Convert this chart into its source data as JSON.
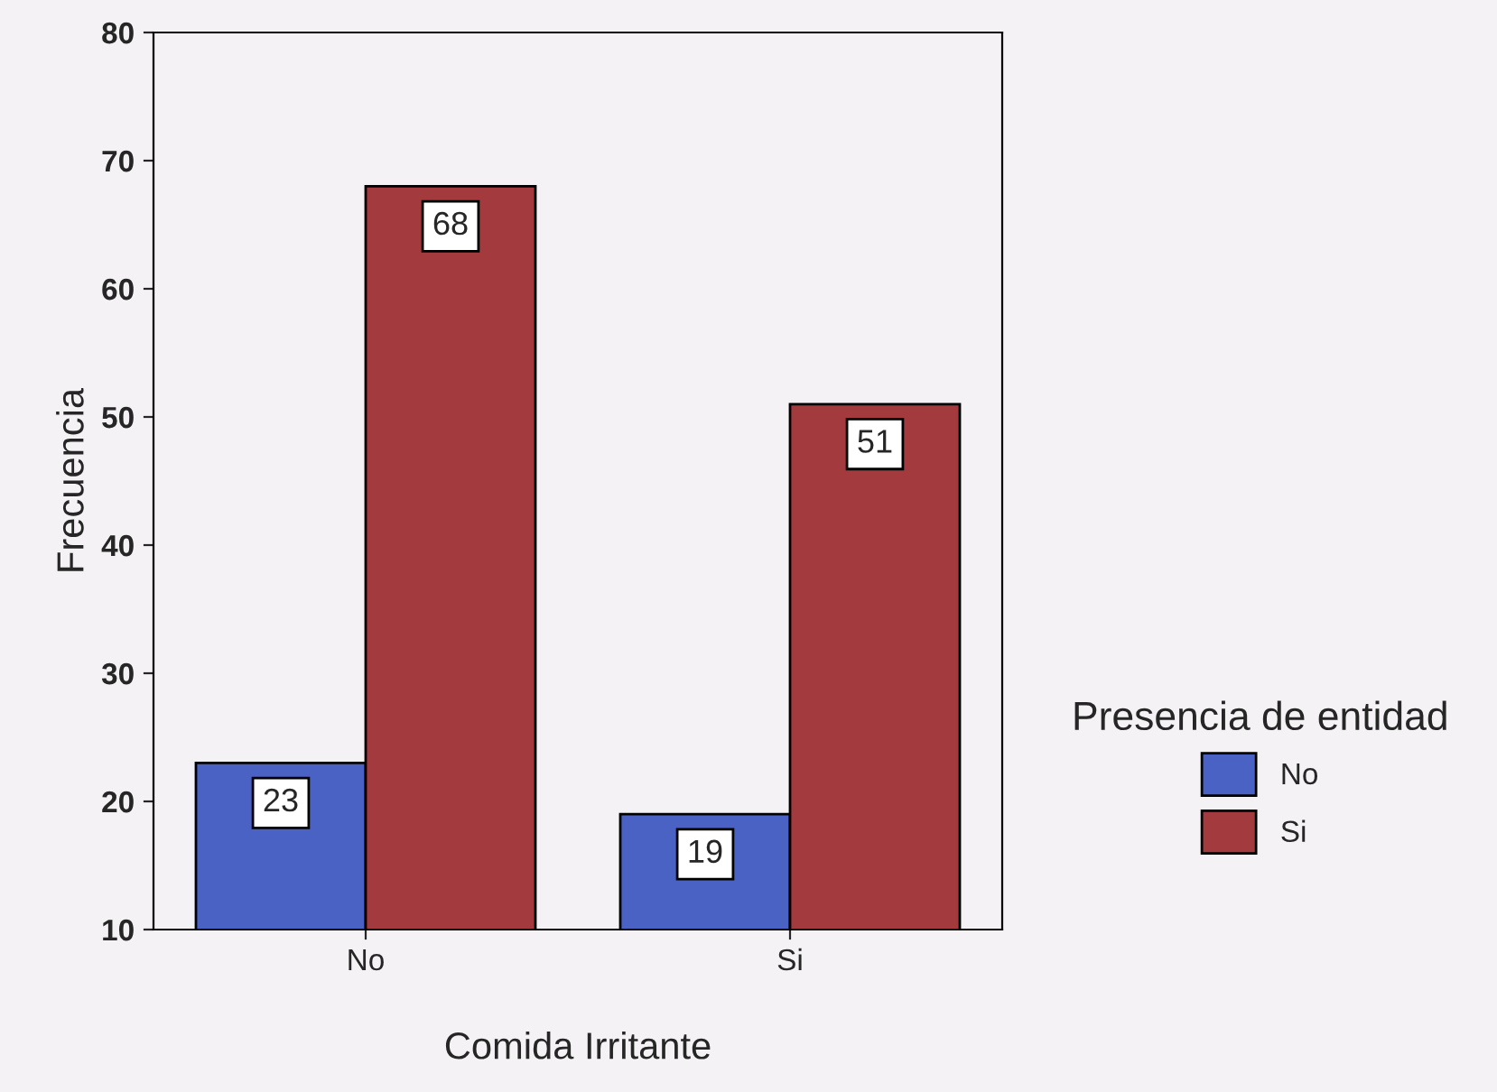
{
  "chart_data": {
    "type": "bar",
    "xlabel": "Comida Irritante",
    "ylabel": "Frecuencia",
    "legend_title": "Presencia de entidad",
    "legend": "right",
    "categories": [
      "No",
      "Si"
    ],
    "series": [
      {
        "name": "No",
        "color": "#4a62c4",
        "values": [
          23,
          19
        ]
      },
      {
        "name": "Si",
        "color": "#a33a3e",
        "values": [
          68,
          51
        ]
      }
    ],
    "ylim": [
      10,
      80
    ],
    "yticks": [
      10,
      20,
      30,
      40,
      50,
      60,
      70,
      80
    ],
    "grid": false,
    "data_labels": true
  }
}
